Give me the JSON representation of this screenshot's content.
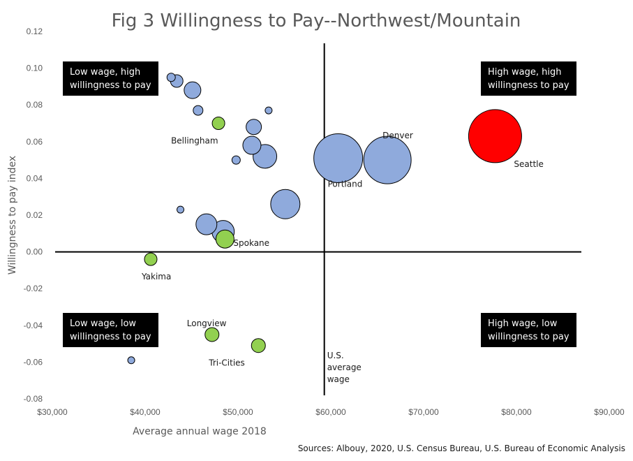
{
  "chart_data": {
    "type": "scatter",
    "title": "Fig 3 Willingness to Pay--Northwest/Mountain",
    "xlabel": "Average annual wage 2018",
    "ylabel": "Willingness to pay index",
    "xlim": [
      30000,
      90000
    ],
    "ylim": [
      -0.08,
      0.12
    ],
    "x_ticks": [
      "$30,000",
      "$40,000",
      "$50,000",
      "$60,000",
      "$70,000",
      "$80,000",
      "$90,000"
    ],
    "y_ticks": [
      "-0.08",
      "-0.06",
      "-0.04",
      "-0.02",
      "0.00",
      "0.02",
      "0.04",
      "0.06",
      "0.08",
      "0.10",
      "0.12"
    ],
    "reference_x": 59300,
    "reference_x_label": [
      "U.S.",
      "average",
      "wage"
    ],
    "colors": {
      "default": "#8faadc",
      "highlight_green": "#92d050",
      "seattle": "#ff0000",
      "stroke": "#000000"
    },
    "quadrant_labels": [
      {
        "lines": [
          "Low wage, high",
          "willingness to pay"
        ],
        "position": "top-left"
      },
      {
        "lines": [
          "High wage, high",
          "willingness to pay"
        ],
        "position": "top-right"
      },
      {
        "lines": [
          "Low wage, low",
          "willingness to pay"
        ],
        "position": "bottom-left"
      },
      {
        "lines": [
          "High wage, low",
          "willingness to pay"
        ],
        "position": "bottom-right"
      }
    ],
    "source": "Sources: Albouy, 2020, U.S. Census Bureau, U.S. Bureau of Economic Analysis",
    "points": [
      {
        "x": 42800,
        "y": 0.095,
        "size": 6,
        "color": "default",
        "label": ""
      },
      {
        "x": 43400,
        "y": 0.093,
        "size": 9,
        "color": "default",
        "label": ""
      },
      {
        "x": 45100,
        "y": 0.088,
        "size": 12,
        "color": "default",
        "label": ""
      },
      {
        "x": 45700,
        "y": 0.077,
        "size": 7,
        "color": "default",
        "label": ""
      },
      {
        "x": 53300,
        "y": 0.077,
        "size": 5,
        "color": "default",
        "label": ""
      },
      {
        "x": 47900,
        "y": 0.07,
        "size": 9,
        "color": "highlight_green",
        "label": "Bellingham"
      },
      {
        "x": 51700,
        "y": 0.068,
        "size": 11,
        "color": "default",
        "label": ""
      },
      {
        "x": 51500,
        "y": 0.058,
        "size": 13,
        "color": "default",
        "label": ""
      },
      {
        "x": 52900,
        "y": 0.052,
        "size": 17,
        "color": "default",
        "label": ""
      },
      {
        "x": 49800,
        "y": 0.05,
        "size": 6,
        "color": "default",
        "label": ""
      },
      {
        "x": 60800,
        "y": 0.051,
        "size": 35,
        "color": "default",
        "label": "Portland"
      },
      {
        "x": 66100,
        "y": 0.05,
        "size": 34,
        "color": "default",
        "label": "Denver"
      },
      {
        "x": 77700,
        "y": 0.063,
        "size": 38,
        "color": "seattle",
        "label": "Seattle"
      },
      {
        "x": 55100,
        "y": 0.026,
        "size": 21,
        "color": "default",
        "label": ""
      },
      {
        "x": 43800,
        "y": 0.023,
        "size": 5,
        "color": "default",
        "label": ""
      },
      {
        "x": 48600,
        "y": 0.007,
        "size": 13,
        "color": "highlight_green",
        "label": "Spokane"
      },
      {
        "x": 46600,
        "y": 0.015,
        "size": 15,
        "color": "default",
        "label": ""
      },
      {
        "x": 48400,
        "y": 0.011,
        "size": 16,
        "color": "default",
        "label": ""
      },
      {
        "x": 40600,
        "y": -0.004,
        "size": 9,
        "color": "highlight_green",
        "label": "Yakima"
      },
      {
        "x": 47200,
        "y": -0.045,
        "size": 10,
        "color": "highlight_green",
        "label": "Longview"
      },
      {
        "x": 52200,
        "y": -0.051,
        "size": 10,
        "color": "highlight_green",
        "label": "Tri-Cities"
      },
      {
        "x": 38500,
        "y": -0.059,
        "size": 5,
        "color": "default",
        "label": ""
      }
    ]
  }
}
